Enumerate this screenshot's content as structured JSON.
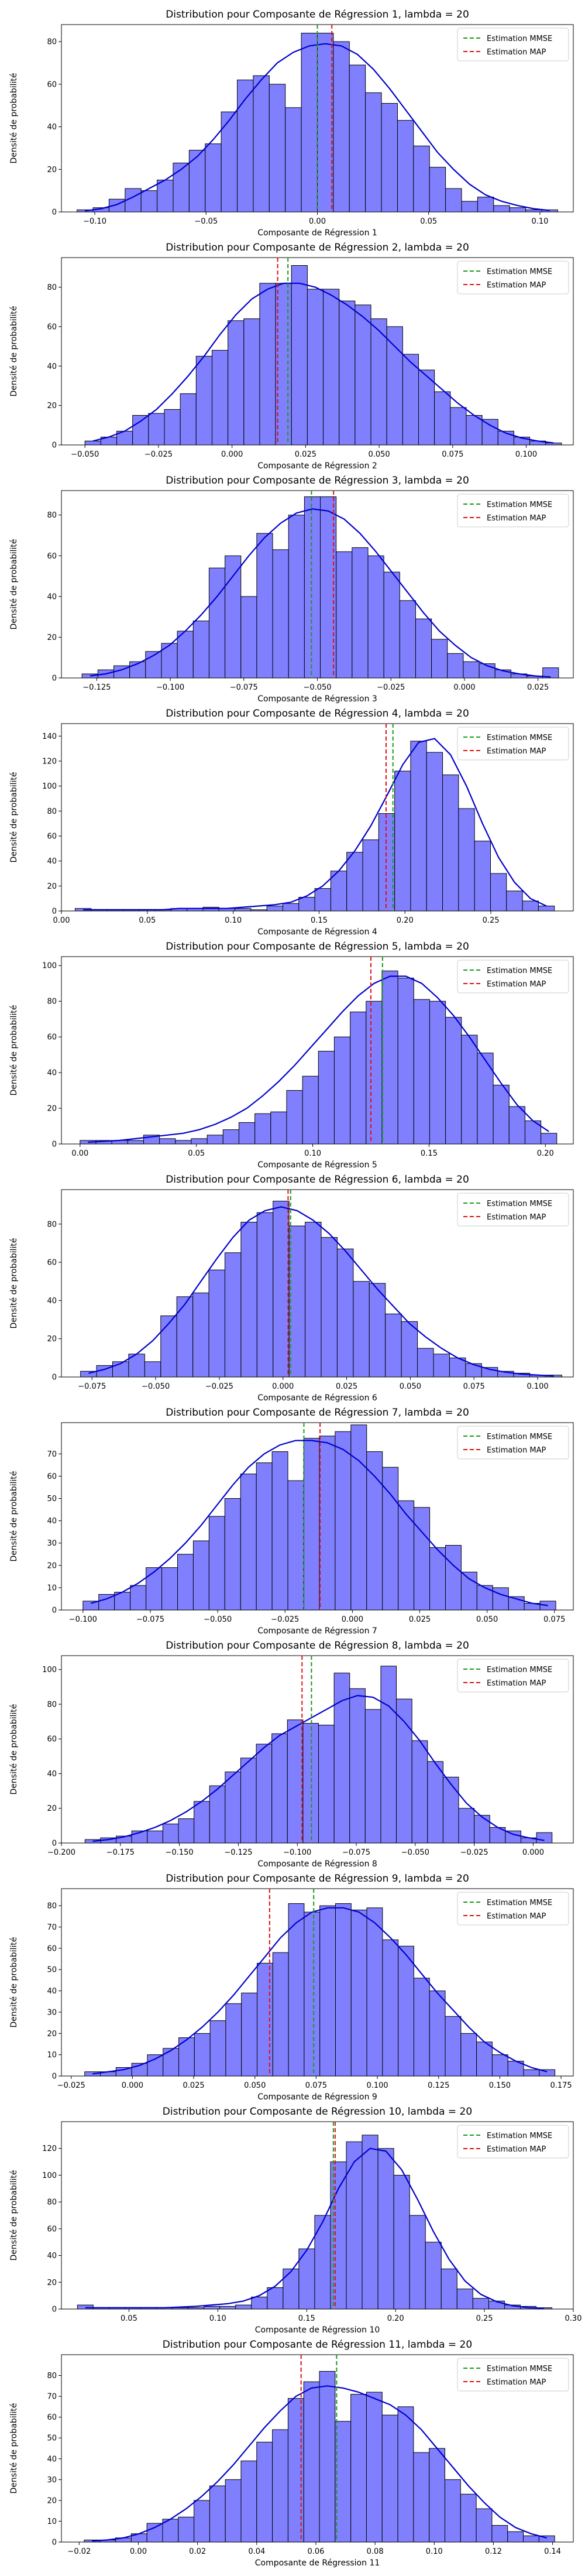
{
  "chart_data": [
    {
      "type": "bar",
      "title": "Distribution pour Composante de Régression 1, lambda = 20",
      "xlabel": "Composante de Régression 1",
      "ylabel": "Densité de probabilité",
      "xlim": [
        -0.115,
        0.115
      ],
      "ylim": [
        0,
        88
      ],
      "xticks": [
        -0.1,
        -0.05,
        0.0,
        0.05,
        0.1
      ],
      "xtick_labels": [
        "−0.10",
        "−0.05",
        "0.00",
        "0.05",
        "0.10"
      ],
      "yticks": [
        0,
        20,
        40,
        60,
        80
      ],
      "ytick_labels": [
        "0",
        "20",
        "40",
        "60",
        "80"
      ],
      "bin_start": -0.108,
      "bin_width": 0.0072,
      "values": [
        1,
        2,
        6,
        11,
        10,
        15,
        23,
        29,
        32,
        47,
        62,
        64,
        60,
        49,
        84,
        84,
        80,
        69,
        56,
        51,
        43,
        31,
        21,
        11,
        5,
        7,
        3,
        2,
        1,
        1
      ],
      "kde": [
        0.5,
        1.5,
        3.5,
        7,
        11,
        15,
        20,
        26,
        34,
        43,
        53,
        62,
        70,
        75,
        78,
        79,
        78,
        74,
        67,
        58,
        48,
        38,
        28,
        20,
        13,
        8,
        5,
        3,
        1.5,
        0.7
      ],
      "mmse": 0.0,
      "map": 0.0065,
      "legend": [
        "Estimation MMSE",
        "Estimation MAP"
      ],
      "legend_position": "top-right"
    },
    {
      "type": "bar",
      "title": "Distribution pour Composante de Régression 2, lambda = 20",
      "xlabel": "Composante de Régression 2",
      "ylabel": "Densité de probabilité",
      "xlim": [
        -0.058,
        0.116
      ],
      "ylim": [
        0,
        95
      ],
      "xticks": [
        -0.05,
        -0.025,
        0.0,
        0.025,
        0.05,
        0.075,
        0.1
      ],
      "xtick_labels": [
        "−0.050",
        "−0.025",
        "0.000",
        "0.025",
        "0.050",
        "0.075",
        "0.100"
      ],
      "yticks": [
        0,
        20,
        40,
        60,
        80
      ],
      "ytick_labels": [
        "0",
        "20",
        "40",
        "60",
        "80"
      ],
      "bin_start": -0.05,
      "bin_width": 0.0054,
      "values": [
        2,
        4,
        7,
        15,
        16,
        18,
        26,
        45,
        48,
        63,
        64,
        82,
        82,
        91,
        79,
        79,
        73,
        71,
        64,
        60,
        46,
        38,
        27,
        19,
        15,
        13,
        7,
        4,
        2,
        1
      ],
      "kde": [
        2,
        4,
        7,
        12,
        18,
        26,
        35,
        45,
        56,
        66,
        74,
        79,
        82,
        82,
        80,
        76,
        71,
        65,
        58,
        50,
        42,
        35,
        28,
        21,
        15,
        10,
        6,
        3.5,
        2,
        1
      ],
      "mmse": 0.019,
      "map": 0.0155,
      "legend": [
        "Estimation MMSE",
        "Estimation MAP"
      ],
      "legend_position": "top-right"
    },
    {
      "type": "bar",
      "title": "Distribution pour Composante de Régression 3, lambda = 20",
      "xlabel": "Composante de Régression 3",
      "ylabel": "Densité de probabilité",
      "xlim": [
        -0.137,
        0.037
      ],
      "ylim": [
        0,
        92
      ],
      "xticks": [
        -0.125,
        -0.1,
        -0.075,
        -0.05,
        -0.025,
        0.0,
        0.025
      ],
      "xtick_labels": [
        "−0.125",
        "−0.100",
        "−0.075",
        "−0.050",
        "−0.025",
        "0.000",
        "0.025"
      ],
      "yticks": [
        0,
        20,
        40,
        60,
        80
      ],
      "ytick_labels": [
        "0",
        "20",
        "40",
        "60",
        "80"
      ],
      "bin_start": -0.13,
      "bin_width": 0.0054,
      "values": [
        2,
        4,
        6,
        8,
        13,
        17,
        23,
        28,
        54,
        60,
        40,
        71,
        63,
        80,
        89,
        89,
        62,
        64,
        60,
        52,
        38,
        29,
        19,
        12,
        8,
        7,
        4,
        2,
        1,
        5
      ],
      "kde": [
        1,
        2,
        4,
        7,
        11,
        16,
        23,
        31,
        40,
        50,
        60,
        69,
        76,
        81,
        83,
        82,
        78,
        71,
        62,
        52,
        42,
        32,
        23,
        16,
        10,
        6,
        3.5,
        2,
        1,
        0.5
      ],
      "mmse": -0.052,
      "map": -0.0445,
      "legend": [
        "Estimation MMSE",
        "Estimation MAP"
      ],
      "legend_position": "top-right"
    },
    {
      "type": "bar",
      "title": "Distribution pour Composante de Régression 4, lambda = 20",
      "xlabel": "Composante de Régression 4",
      "ylabel": "Densité de probabilité",
      "xlim": [
        0.0,
        0.298
      ],
      "ylim": [
        0,
        150
      ],
      "xticks": [
        0.0,
        0.05,
        0.1,
        0.15,
        0.2,
        0.25
      ],
      "xtick_labels": [
        "0.00",
        "0.05",
        "0.10",
        "0.15",
        "0.20",
        "0.25"
      ],
      "yticks": [
        0,
        20,
        40,
        60,
        80,
        100,
        120,
        140
      ],
      "ytick_labels": [
        "0",
        "20",
        "40",
        "60",
        "80",
        "100",
        "120",
        "140"
      ],
      "bin_start": 0.008,
      "bin_width": 0.0093,
      "values": [
        2,
        1,
        1,
        1,
        1,
        1,
        2,
        2,
        3,
        2,
        2,
        1,
        4,
        6,
        11,
        18,
        32,
        47,
        57,
        78,
        112,
        136,
        127,
        109,
        82,
        56,
        30,
        16,
        8,
        4
      ],
      "kde": [
        1,
        1,
        1,
        1,
        1,
        1,
        2,
        2,
        2,
        2,
        3,
        4,
        5,
        7,
        12,
        20,
        32,
        48,
        68,
        92,
        117,
        135,
        138,
        125,
        100,
        70,
        43,
        23,
        10,
        4
      ],
      "mmse": 0.193,
      "map": 0.189,
      "legend": [
        "Estimation MMSE",
        "Estimation MAP"
      ],
      "legend_position": "top-right"
    },
    {
      "type": "bar",
      "title": "Distribution pour Composante de Régression 5, lambda = 20",
      "xlabel": "Composante de Régression 5",
      "ylabel": "Densité de probabilité",
      "xlim": [
        -0.008,
        0.212
      ],
      "ylim": [
        0,
        105
      ],
      "xticks": [
        0.0,
        0.05,
        0.1,
        0.15,
        0.2
      ],
      "xtick_labels": [
        "0.00",
        "0.05",
        "0.10",
        "0.15",
        "0.20"
      ],
      "yticks": [
        0,
        20,
        40,
        60,
        80,
        100
      ],
      "ytick_labels": [
        "0",
        "20",
        "40",
        "60",
        "80",
        "100"
      ],
      "bin_start": 0.0,
      "bin_width": 0.00683,
      "values": [
        2,
        2,
        2,
        2,
        5,
        3,
        2,
        3,
        5,
        8,
        12,
        17,
        18,
        30,
        38,
        52,
        60,
        74,
        80,
        97,
        93,
        81,
        80,
        71,
        61,
        51,
        33,
        21,
        13,
        6
      ],
      "kde": [
        1,
        1.5,
        2,
        3,
        4,
        5,
        6,
        8,
        11,
        15,
        20,
        27,
        35,
        44,
        54,
        64,
        74,
        83,
        90,
        94,
        94,
        90,
        82,
        72,
        60,
        47,
        34,
        22,
        13,
        7
      ],
      "mmse": 0.13,
      "map": 0.125,
      "legend": [
        "Estimation MMSE",
        "Estimation MAP"
      ],
      "legend_position": "top-right"
    },
    {
      "type": "bar",
      "title": "Distribution pour Composante de Régression 6, lambda = 20",
      "xlabel": "Composante de Régression 6",
      "ylabel": "Densité de probabilité",
      "xlim": [
        -0.087,
        0.114
      ],
      "ylim": [
        0,
        98
      ],
      "xticks": [
        -0.075,
        -0.05,
        -0.025,
        0.0,
        0.025,
        0.05,
        0.075,
        0.1
      ],
      "xtick_labels": [
        "−0.075",
        "−0.050",
        "−0.025",
        "0.000",
        "0.025",
        "0.050",
        "0.075",
        "0.100"
      ],
      "yticks": [
        0,
        20,
        40,
        60,
        80
      ],
      "ytick_labels": [
        "0",
        "20",
        "40",
        "60",
        "80"
      ],
      "bin_start": -0.0795,
      "bin_width": 0.0063,
      "values": [
        3,
        6,
        8,
        12,
        8,
        32,
        42,
        44,
        56,
        65,
        81,
        86,
        92,
        79,
        81,
        73,
        67,
        50,
        49,
        33,
        29,
        15,
        12,
        10,
        7,
        5,
        3,
        2,
        1,
        1
      ],
      "kde": [
        2,
        4,
        7,
        12,
        19,
        28,
        38,
        50,
        62,
        73,
        82,
        87,
        89,
        87,
        82,
        75,
        66,
        56,
        46,
        37,
        28,
        21,
        15,
        10,
        6.5,
        4,
        2.5,
        1.5,
        1,
        0.5
      ],
      "mmse": 0.003,
      "map": 0.002,
      "legend": [
        "Estimation MMSE",
        "Estimation MAP"
      ],
      "legend_position": "top-right"
    },
    {
      "type": "bar",
      "title": "Distribution pour Composante de Régression 7, lambda = 20",
      "xlabel": "Composante de Régression 7",
      "ylabel": "Densité de probabilité",
      "xlim": [
        -0.108,
        0.082
      ],
      "ylim": [
        0,
        84
      ],
      "xticks": [
        -0.1,
        -0.075,
        -0.05,
        -0.025,
        0.0,
        0.025,
        0.05,
        0.075
      ],
      "xtick_labels": [
        "−0.100",
        "−0.075",
        "−0.050",
        "−0.025",
        "0.000",
        "0.025",
        "0.050",
        "0.075"
      ],
      "yticks": [
        0,
        10,
        20,
        30,
        40,
        50,
        60,
        70
      ],
      "ytick_labels": [
        "0",
        "10",
        "20",
        "30",
        "40",
        "50",
        "60",
        "70"
      ],
      "bin_start": -0.1,
      "bin_width": 0.00585,
      "values": [
        4,
        7,
        8,
        11,
        19,
        19,
        25,
        31,
        42,
        50,
        61,
        66,
        71,
        58,
        77,
        78,
        80,
        83,
        71,
        64,
        49,
        46,
        28,
        29,
        17,
        11,
        10,
        6,
        3,
        4
      ],
      "kde": [
        3,
        5,
        8,
        12,
        17,
        23,
        30,
        38,
        47,
        56,
        64,
        70,
        74,
        76,
        76,
        75,
        72,
        67,
        60,
        52,
        43,
        35,
        27,
        20,
        14,
        10,
        7,
        5,
        3,
        2
      ],
      "mmse": -0.018,
      "map": -0.012,
      "legend": [
        "Estimation MMSE",
        "Estimation MAP"
      ],
      "legend_position": "top-right"
    },
    {
      "type": "bar",
      "title": "Distribution pour Composante de Régression 8, lambda = 20",
      "xlabel": "Composante de Régression 8",
      "ylabel": "Densité de probabilité",
      "xlim": [
        -0.2,
        0.017
      ],
      "ylim": [
        0,
        108
      ],
      "xticks": [
        -0.2,
        -0.175,
        -0.15,
        -0.125,
        -0.1,
        -0.075,
        -0.05,
        -0.025,
        0.0
      ],
      "xtick_labels": [
        "−0.200",
        "−0.175",
        "−0.150",
        "−0.125",
        "−0.100",
        "−0.075",
        "−0.050",
        "−0.025",
        "0.000"
      ],
      "yticks": [
        0,
        20,
        40,
        60,
        80,
        100
      ],
      "ytick_labels": [
        "0",
        "20",
        "40",
        "60",
        "80",
        "100"
      ],
      "bin_start": -0.19,
      "bin_width": 0.0066,
      "values": [
        2,
        3,
        4,
        7,
        7,
        11,
        14,
        24,
        33,
        41,
        49,
        57,
        63,
        71,
        69,
        68,
        98,
        89,
        77,
        102,
        83,
        59,
        47,
        38,
        20,
        16,
        9,
        7,
        3,
        6
      ],
      "kde": [
        1,
        2,
        3.5,
        6,
        9,
        13,
        18,
        24,
        31,
        39,
        47,
        55,
        62,
        67,
        72,
        77,
        82,
        85,
        84,
        79,
        70,
        59,
        46,
        34,
        23,
        15,
        9,
        5,
        3,
        1.5
      ],
      "mmse": -0.094,
      "map": -0.098,
      "legend": [
        "Estimation MMSE",
        "Estimation MAP"
      ],
      "legend_position": "top-right"
    },
    {
      "type": "bar",
      "title": "Distribution pour Composante de Régression 9, lambda = 20",
      "xlabel": "Composante de Régression 9",
      "ylabel": "Densité de probabilité",
      "xlim": [
        -0.029,
        0.18
      ],
      "ylim": [
        0,
        88
      ],
      "xticks": [
        -0.025,
        0.0,
        0.025,
        0.05,
        0.075,
        0.1,
        0.125,
        0.15,
        0.175
      ],
      "xtick_labels": [
        "−0.025",
        "0.000",
        "0.025",
        "0.050",
        "0.075",
        "0.100",
        "0.125",
        "0.150",
        "0.175"
      ],
      "yticks": [
        0,
        10,
        20,
        30,
        40,
        50,
        60,
        70,
        80
      ],
      "ytick_labels": [
        "0",
        "10",
        "20",
        "30",
        "40",
        "50",
        "60",
        "70",
        "80"
      ],
      "bin_start": -0.0195,
      "bin_width": 0.0064,
      "values": [
        2,
        2,
        4,
        6,
        10,
        13,
        18,
        20,
        26,
        34,
        39,
        53,
        58,
        81,
        77,
        80,
        81,
        78,
        79,
        64,
        61,
        46,
        40,
        28,
        20,
        16,
        10,
        7,
        3,
        3
      ],
      "kde": [
        1,
        2,
        3,
        5,
        8,
        12,
        17,
        23,
        30,
        38,
        47,
        56,
        65,
        72,
        77,
        79,
        79,
        77,
        72,
        65,
        57,
        48,
        39,
        31,
        23,
        16,
        11,
        7,
        4,
        2
      ],
      "mmse": 0.074,
      "map": 0.056,
      "legend": [
        "Estimation MMSE",
        "Estimation MAP"
      ],
      "legend_position": "top-right"
    },
    {
      "type": "bar",
      "title": "Distribution pour Composante de Régression 10, lambda = 20",
      "xlabel": "Composante de Régression 10",
      "ylabel": "Densité de probabilité",
      "xlim": [
        0.012,
        0.3
      ],
      "ylim": [
        0,
        140
      ],
      "xticks": [
        0.05,
        0.1,
        0.15,
        0.2,
        0.25,
        0.3
      ],
      "xtick_labels": [
        "0.05",
        "0.10",
        "0.15",
        "0.20",
        "0.25",
        "0.30"
      ],
      "yticks": [
        0,
        20,
        40,
        60,
        80,
        100,
        120
      ],
      "ytick_labels": [
        "0",
        "20",
        "40",
        "60",
        "80",
        "100",
        "120"
      ],
      "bin_start": 0.021,
      "bin_width": 0.0089,
      "values": [
        3,
        1,
        1,
        1,
        1,
        1,
        1,
        1,
        2,
        2,
        3,
        9,
        16,
        30,
        45,
        70,
        110,
        125,
        130,
        120,
        100,
        70,
        50,
        30,
        15,
        8,
        6,
        3,
        2,
        1
      ],
      "kde": [
        1,
        1,
        1,
        1,
        1,
        1,
        1.5,
        2,
        3,
        4,
        6,
        10,
        17,
        28,
        44,
        65,
        90,
        110,
        120,
        118,
        104,
        82,
        58,
        37,
        21,
        11,
        5.5,
        2.5,
        1,
        0.5
      ],
      "mmse": 0.165,
      "map": 0.166,
      "legend": [
        "Estimation MMSE",
        "Estimation MAP"
      ],
      "legend_position": "top-right"
    },
    {
      "type": "bar",
      "title": "Distribution pour Composante de Régression 11, lambda = 20",
      "xlabel": "Composante de Régression 11",
      "ylabel": "Densité de probabilité",
      "xlim": [
        -0.026,
        0.147
      ],
      "ylim": [
        0,
        90
      ],
      "xticks": [
        -0.02,
        0.0,
        0.02,
        0.04,
        0.06,
        0.08,
        0.1,
        0.12,
        0.14
      ],
      "xtick_labels": [
        "−0.02",
        "0.00",
        "0.02",
        "0.04",
        "0.06",
        "0.08",
        "0.10",
        "0.12",
        "0.14"
      ],
      "yticks": [
        0,
        10,
        20,
        30,
        40,
        50,
        60,
        70,
        80
      ],
      "ytick_labels": [
        "0",
        "10",
        "20",
        "30",
        "40",
        "50",
        "60",
        "70",
        "80"
      ],
      "bin_start": -0.0183,
      "bin_width": 0.0053,
      "values": [
        1,
        1,
        2,
        4,
        9,
        11,
        12,
        20,
        27,
        30,
        39,
        48,
        54,
        69,
        77,
        82,
        58,
        71,
        72,
        61,
        65,
        43,
        45,
        30,
        23,
        16,
        8,
        5,
        3,
        3
      ],
      "kde": [
        0.5,
        1,
        2,
        4,
        7,
        11,
        16,
        22,
        29,
        37,
        46,
        55,
        63,
        70,
        74,
        75,
        74,
        72,
        69,
        66,
        61,
        54,
        45,
        36,
        27,
        19,
        12,
        7,
        4,
        2
      ],
      "mmse": 0.067,
      "map": 0.055,
      "legend": [
        "Estimation MMSE",
        "Estimation MAP"
      ],
      "legend_position": "top-right"
    }
  ],
  "colors": {
    "bar_fill": "#8080ff",
    "bar_edge": "#000000",
    "kde_line": "#0000cc",
    "mmse_line": "#1a9a1a",
    "map_line": "#dd1111"
  }
}
